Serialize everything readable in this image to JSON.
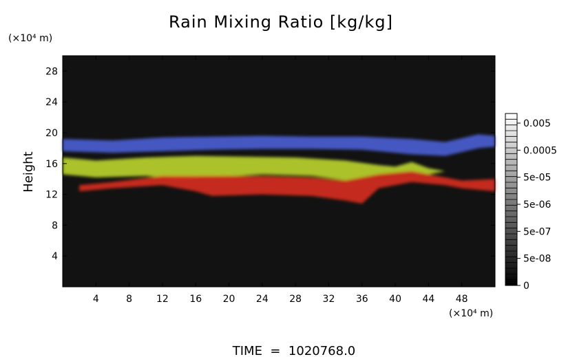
{
  "chart_data": {
    "type": "heatmap",
    "title": "Rain Mixing Ratio [kg/kg]",
    "ylabel": "Height",
    "y_unit_label": "(×10⁴ m)",
    "x_unit_label": "(×10⁴ m)",
    "footer": "TIME  =  1020768.0",
    "xlim": [
      0,
      52
    ],
    "ylim": [
      0,
      30
    ],
    "x_ticks": [
      4,
      8,
      12,
      16,
      20,
      24,
      28,
      32,
      36,
      40,
      44,
      48
    ],
    "y_ticks": [
      4,
      8,
      12,
      16,
      20,
      24,
      28
    ],
    "grid": false,
    "background_color": "#121212",
    "colorbar": {
      "labels": [
        "0.005",
        "0.0005",
        "5e-05",
        "5e-06",
        "5e-07",
        "5e-08",
        "0"
      ],
      "gray_range": [
        "#000000",
        "#ffffff"
      ]
    },
    "layers": [
      {
        "color": "#4a5dd0",
        "name": "upper band",
        "top": [
          [
            0,
            19.2
          ],
          [
            6,
            19.0
          ],
          [
            12,
            19.4
          ],
          [
            18,
            19.5
          ],
          [
            24,
            19.6
          ],
          [
            30,
            19.5
          ],
          [
            36,
            19.5
          ],
          [
            42,
            19.2
          ],
          [
            46,
            18.8
          ],
          [
            50,
            19.8
          ],
          [
            52,
            19.6
          ]
        ],
        "bottom": [
          [
            0,
            17.6
          ],
          [
            6,
            17.4
          ],
          [
            12,
            17.6
          ],
          [
            18,
            17.8
          ],
          [
            24,
            17.9
          ],
          [
            30,
            17.9
          ],
          [
            36,
            17.8
          ],
          [
            42,
            17.2
          ],
          [
            46,
            17.0
          ],
          [
            50,
            18.0
          ],
          [
            52,
            18.2
          ]
        ]
      },
      {
        "color": "#b8d02e",
        "name": "middle band",
        "top": [
          [
            0,
            16.8
          ],
          [
            4,
            16.4
          ],
          [
            10,
            16.8
          ],
          [
            16,
            17.0
          ],
          [
            22,
            16.9
          ],
          [
            28,
            16.8
          ],
          [
            34,
            16.4
          ],
          [
            38,
            15.8
          ],
          [
            40,
            15.6
          ],
          [
            42,
            16.2
          ],
          [
            44,
            15.4
          ],
          [
            46,
            15.0
          ]
        ],
        "bottom": [
          [
            0,
            14.6
          ],
          [
            4,
            14.2
          ],
          [
            10,
            14.4
          ],
          [
            14,
            14.0
          ],
          [
            18,
            14.2
          ],
          [
            24,
            14.6
          ],
          [
            30,
            14.4
          ],
          [
            34,
            13.8
          ],
          [
            38,
            14.6
          ],
          [
            42,
            15.0
          ],
          [
            44,
            14.6
          ],
          [
            46,
            15.0
          ]
        ]
      },
      {
        "color": "#d42b1e",
        "name": "lower band",
        "top": [
          [
            2,
            13.2
          ],
          [
            6,
            13.6
          ],
          [
            12,
            14.4
          ],
          [
            18,
            14.4
          ],
          [
            24,
            14.4
          ],
          [
            30,
            14.2
          ],
          [
            34,
            13.8
          ],
          [
            38,
            14.6
          ],
          [
            42,
            15.0
          ],
          [
            44,
            14.6
          ],
          [
            48,
            13.8
          ],
          [
            52,
            14.0
          ]
        ],
        "bottom": [
          [
            2,
            12.4
          ],
          [
            6,
            12.8
          ],
          [
            12,
            13.2
          ],
          [
            16,
            12.4
          ],
          [
            18,
            11.8
          ],
          [
            24,
            12.0
          ],
          [
            30,
            11.8
          ],
          [
            34,
            11.2
          ],
          [
            36,
            10.8
          ],
          [
            38,
            12.8
          ],
          [
            42,
            13.6
          ],
          [
            46,
            13.2
          ],
          [
            48,
            12.8
          ],
          [
            50,
            12.6
          ],
          [
            52,
            12.4
          ]
        ]
      }
    ]
  }
}
